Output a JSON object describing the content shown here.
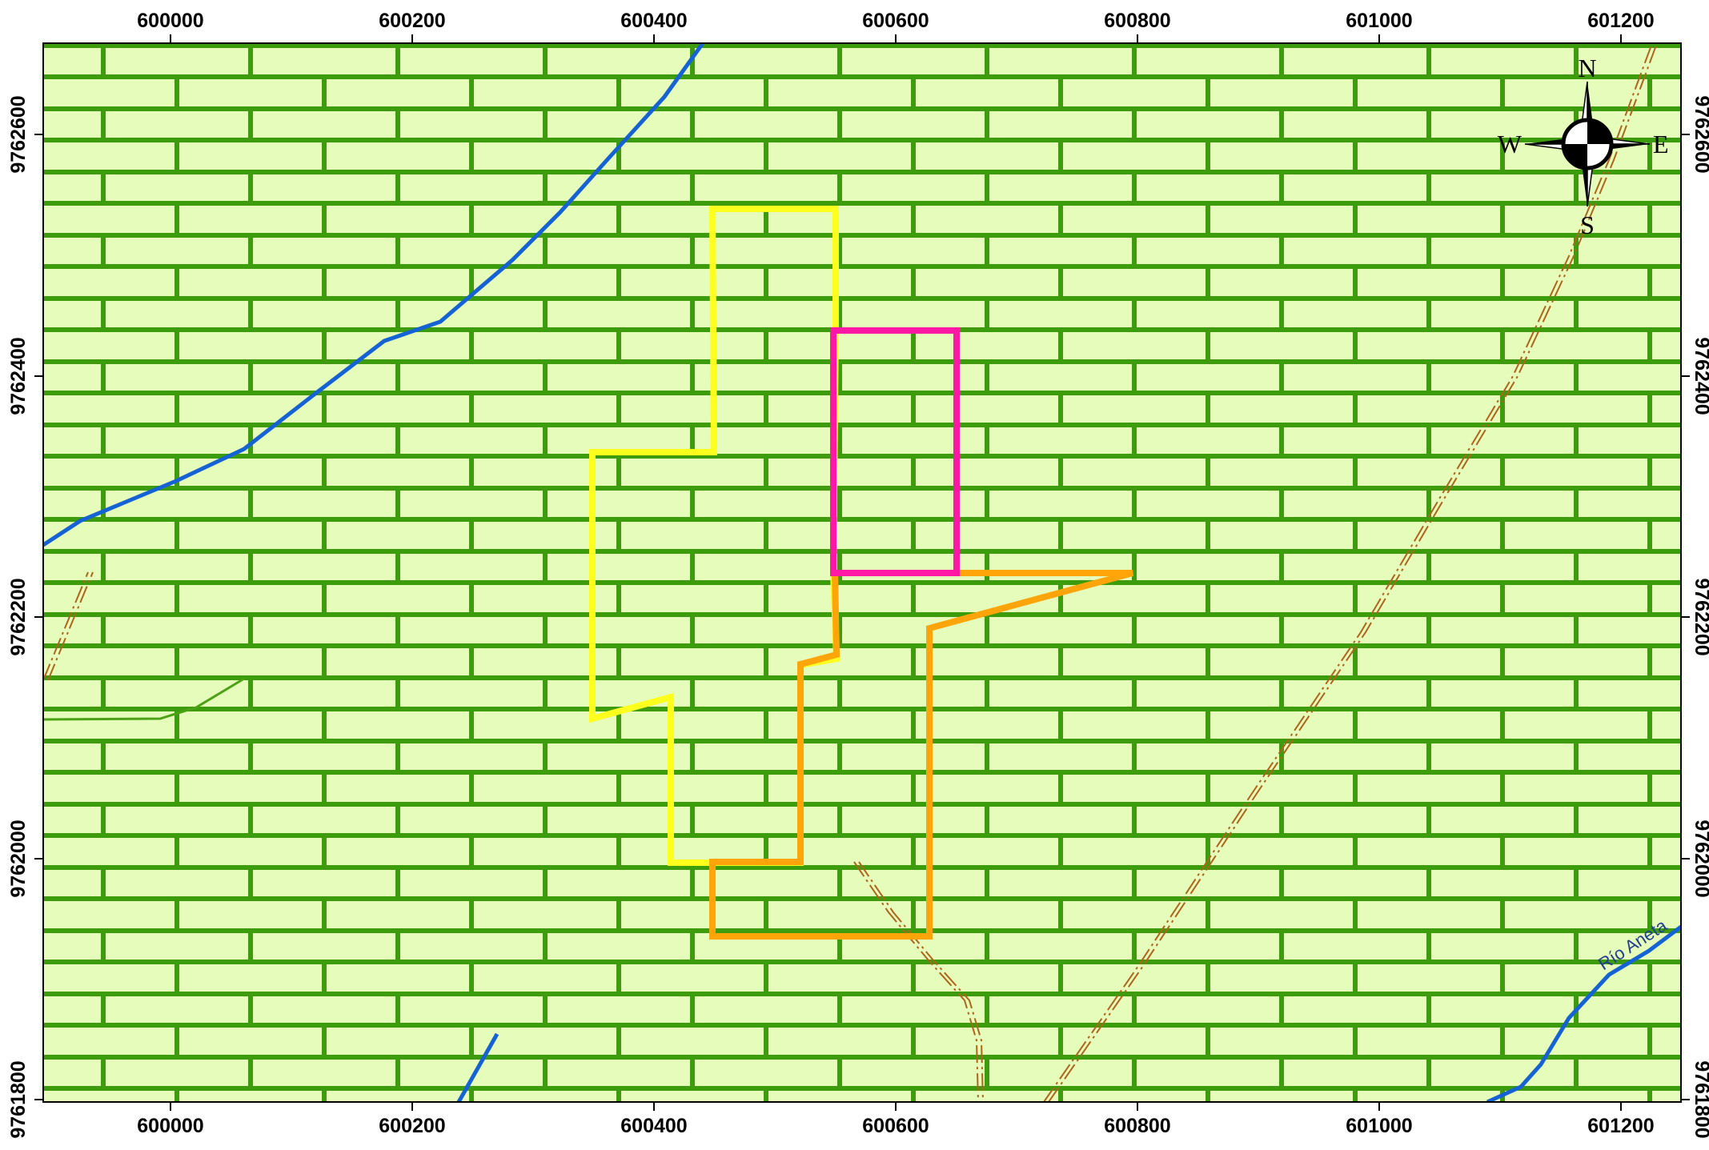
{
  "map": {
    "x_ticks": [
      "600000",
      "600200",
      "600400",
      "600600",
      "600800",
      "601000",
      "601200"
    ],
    "y_ticks": [
      "9762600",
      "9762400",
      "9762200",
      "9762000",
      "9761800"
    ],
    "river_label": "Río Aneta",
    "compass": {
      "north": "N",
      "south": "S",
      "east": "E",
      "west": "W"
    },
    "colors": {
      "background": "#e6fcbb",
      "brick_pattern": "#3c9c0c",
      "river": "#1462d4",
      "yellow_polygon": "#ffff1e",
      "orange_polygon": "#ffa50a",
      "magenta_polygon": "#ff18a6",
      "trail": "#b0641a",
      "green_line": "#4aa214"
    }
  }
}
